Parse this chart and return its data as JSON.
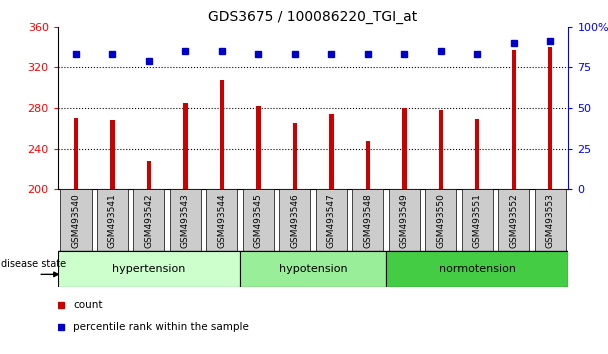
{
  "title": "GDS3675 / 100086220_TGI_at",
  "samples": [
    "GSM493540",
    "GSM493541",
    "GSM493542",
    "GSM493543",
    "GSM493544",
    "GSM493545",
    "GSM493546",
    "GSM493547",
    "GSM493548",
    "GSM493549",
    "GSM493550",
    "GSM493551",
    "GSM493552",
    "GSM493553"
  ],
  "counts": [
    270,
    268,
    228,
    285,
    307,
    282,
    265,
    274,
    248,
    280,
    278,
    269,
    337,
    340
  ],
  "percentile_ranks": [
    83,
    83,
    79,
    85,
    85,
    83,
    83,
    83,
    83,
    83,
    85,
    83,
    90,
    91
  ],
  "groups": [
    {
      "label": "hypertension",
      "start": 0,
      "end": 5,
      "color": "#ccffcc"
    },
    {
      "label": "hypotension",
      "start": 5,
      "end": 9,
      "color": "#99ee99"
    },
    {
      "label": "normotension",
      "start": 9,
      "end": 14,
      "color": "#44cc44"
    }
  ],
  "ylim_left": [
    200,
    360
  ],
  "ylim_right": [
    0,
    100
  ],
  "yticks_left": [
    200,
    240,
    280,
    320,
    360
  ],
  "yticks_right": [
    0,
    25,
    50,
    75,
    100
  ],
  "bar_color": "#cc0000",
  "dot_color": "#0000cc",
  "background_color": "#ffffff",
  "tick_bg_color": "#cccccc",
  "legend_count_label": "count",
  "legend_percentile_label": "percentile rank within the sample",
  "disease_state_label": "disease state",
  "bar_width": 0.12,
  "dot_size": 5
}
